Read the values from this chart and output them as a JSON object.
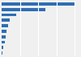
{
  "values": [
    796,
    480,
    155,
    90,
    68,
    52,
    42,
    32,
    22,
    12
  ],
  "bar_color": "#2e6db4",
  "background_color": "#f0f0f0",
  "xlim_max": 850,
  "bar_height": 0.55,
  "grid_color": "#ffffff",
  "grid_linewidth": 0.8
}
